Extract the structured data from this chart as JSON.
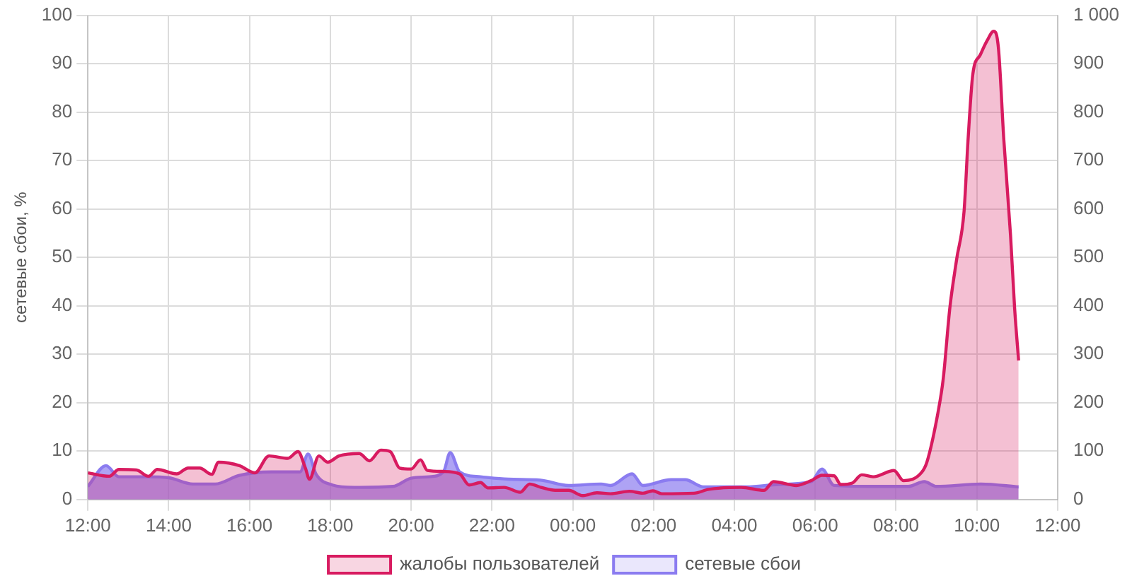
{
  "chart_data": {
    "type": "area",
    "ylabel": "сетевые сбои, %",
    "legend": "bottom",
    "grid": true,
    "marker": "none",
    "xlim": [
      "--01-01T12:00",
      "--01-02T12:00"
    ],
    "xticks": [
      {
        "value": "--01-01T12:00",
        "label": "12:00"
      },
      {
        "value": "--01-01T14:00",
        "label": "14:00"
      },
      {
        "value": "--01-01T16:00",
        "label": "16:00"
      },
      {
        "value": "--01-01T18:00",
        "label": "18:00"
      },
      {
        "value": "--01-01T20:00",
        "label": "20:00"
      },
      {
        "value": "--01-01T22:00",
        "label": "22:00"
      },
      {
        "value": "--01-02T00:00",
        "label": "00:00"
      },
      {
        "value": "--01-02T02:00",
        "label": "02:00"
      },
      {
        "value": "--01-02T04:00",
        "label": "04:00"
      },
      {
        "value": "--01-02T06:00",
        "label": "06:00"
      },
      {
        "value": "--01-02T08:00",
        "label": "08:00"
      },
      {
        "value": "--01-02T10:00",
        "label": "10:00"
      },
      {
        "value": "--01-02T12:00",
        "label": "12:00"
      }
    ],
    "ylim": [
      0,
      100
    ],
    "yticks": [
      0,
      10,
      20,
      30,
      40,
      50,
      60,
      70,
      80,
      90,
      100
    ],
    "y2lim": [
      0,
      1000
    ],
    "y2ticks": [
      0,
      100,
      200,
      300,
      400,
      500,
      600,
      700,
      800,
      900,
      {
        "value": 1000,
        "label": "1 000"
      }
    ],
    "series": [
      {
        "name": "жалобы пользователей",
        "color": "#d81b60",
        "axis": "y2",
        "x": [
          "--01-01T12:00",
          "--01-01T12:32",
          "--01-01T12:46",
          "--01-01T13:12",
          "--01-01T13:30",
          "--01-01T13:43",
          "--01-01T14:12",
          "--01-01T14:29",
          "--01-01T14:46",
          "--01-01T15:04",
          "--01-01T15:14",
          "--01-01T15:45",
          "--01-01T16:08",
          "--01-01T16:29",
          "--01-01T16:57",
          "--01-01T17:12",
          "--01-01T17:23",
          "--01-01T17:29",
          "--01-01T17:43",
          "--01-01T17:56",
          "--01-01T18:13",
          "--01-01T18:43",
          "--01-01T18:58",
          "--01-01T19:15",
          "--01-01T19:29",
          "--01-01T19:43",
          "--01-01T20:00",
          "--01-01T20:14",
          "--01-01T20:24",
          "--01-01T20:48",
          "--01-01T21:12",
          "--01-01T21:26",
          "--01-01T21:43",
          "--01-01T21:54",
          "--01-01T22:18",
          "--01-01T22:42",
          "--01-01T22:56",
          "--01-01T23:13",
          "--01-01T23:34",
          "--01-01T23:54",
          "--01-02T00:15",
          "--01-02T00:36",
          "--01-02T00:56",
          "--01-02T01:24",
          "--01-02T01:44",
          "--01-02T01:59",
          "--01-02T02:12",
          "--01-02T03:00",
          "--01-02T03:22",
          "--01-02T04:10",
          "--01-02T04:44",
          "--01-02T04:58",
          "--01-02T05:32",
          "--01-02T05:54",
          "--01-02T06:10",
          "--01-02T06:28",
          "--01-02T06:38",
          "--01-02T06:55",
          "--01-02T07:09",
          "--01-02T07:26",
          "--01-02T07:57",
          "--01-02T08:11",
          "--01-02T08:38",
          "--01-02T08:46",
          "--01-02T09:03",
          "--01-02T09:10",
          "--01-02T09:20",
          "--01-02T09:30",
          "--01-02T09:41",
          "--01-02T09:47",
          "--01-02T09:54",
          "--01-02T10:05",
          "--01-02T10:15",
          "--01-02T10:25",
          "--01-02T10:32",
          "--01-02T10:40",
          "--01-02T10:50",
          "--01-02T10:56",
          "--01-02T11:02"
        ],
        "values": [
          55,
          48,
          62,
          61,
          48,
          62,
          53,
          65,
          65,
          52,
          77,
          70,
          55,
          90,
          85,
          99,
          65,
          42,
          90,
          77,
          90,
          95,
          80,
          102,
          99,
          65,
          63,
          82,
          60,
          58,
          53,
          30,
          35,
          24,
          25,
          15,
          32,
          25,
          19,
          19,
          8,
          14,
          12,
          17,
          13,
          18,
          12,
          13,
          21,
          25,
          19,
          37,
          29,
          39,
          50,
          49,
          31,
          34,
          51,
          47,
          60,
          39,
          56,
          78,
          185,
          248,
          397,
          496,
          595,
          744,
          878,
          918,
          947,
          967,
          933,
          744,
          546,
          397,
          287
        ]
      },
      {
        "name": "сетевые сбои",
        "color": "#8b7cf0",
        "axis": "y",
        "x": [
          "--01-01T12:00",
          "--01-01T12:27",
          "--01-01T12:46",
          "--01-01T13:27",
          "--01-01T14:00",
          "--01-01T14:36",
          "--01-01T15:09",
          "--01-01T15:45",
          "--01-01T16:33",
          "--01-01T17:15",
          "--01-01T17:27",
          "--01-01T17:39",
          "--01-01T18:03",
          "--01-01T18:36",
          "--01-01T19:33",
          "--01-01T20:00",
          "--01-01T20:27",
          "--01-01T20:48",
          "--01-01T20:58",
          "--01-01T21:12",
          "--01-01T21:43",
          "--01-01T22:24",
          "--01-01T23:12",
          "--01-01T23:54",
          "--01-02T00:42",
          "--01-02T00:56",
          "--01-02T01:28",
          "--01-02T01:44",
          "--01-02T02:26",
          "--01-02T02:47",
          "--01-02T03:14",
          "--01-02T04:18",
          "--01-02T05:06",
          "--01-02T05:54",
          "--01-02T06:10",
          "--01-02T06:28",
          "--01-02T07:23",
          "--01-02T08:18",
          "--01-02T08:42",
          "--01-02T09:00",
          "--01-02T10:06",
          "--01-02T11:02"
        ],
        "values": [
          2.7,
          7,
          4.7,
          4.7,
          4.5,
          3.2,
          3.2,
          5,
          5.7,
          5.7,
          9.4,
          5.2,
          3,
          2.5,
          2.7,
          4.4,
          4.7,
          5.7,
          9.7,
          5.7,
          4.7,
          4.2,
          4,
          2.9,
          3.2,
          2.9,
          5.3,
          2.9,
          4.1,
          4.1,
          2.6,
          2.6,
          3.1,
          3.7,
          6.3,
          2.9,
          2.7,
          2.7,
          3.7,
          2.7,
          3.2,
          2.6
        ]
      }
    ]
  }
}
